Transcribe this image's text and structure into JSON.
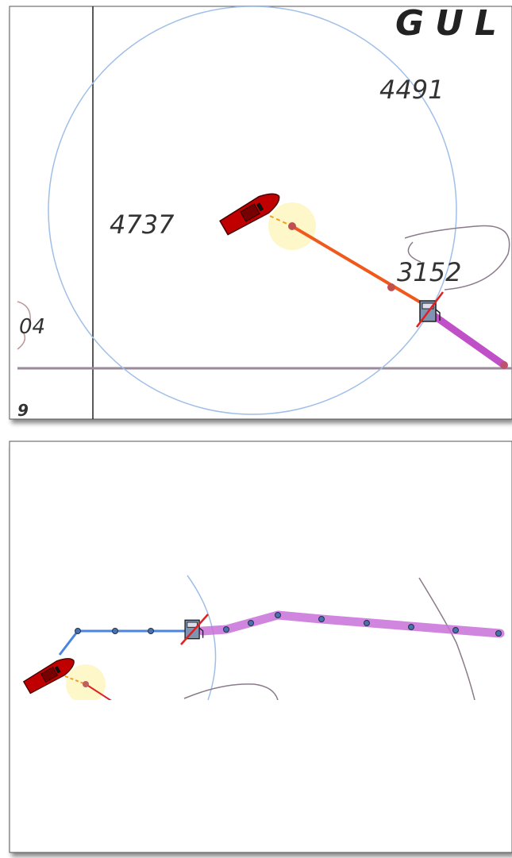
{
  "top_panel": {
    "place_name": "GUL",
    "soundings": [
      "4491",
      "4737",
      "3152",
      "04",
      "9"
    ]
  }
}
